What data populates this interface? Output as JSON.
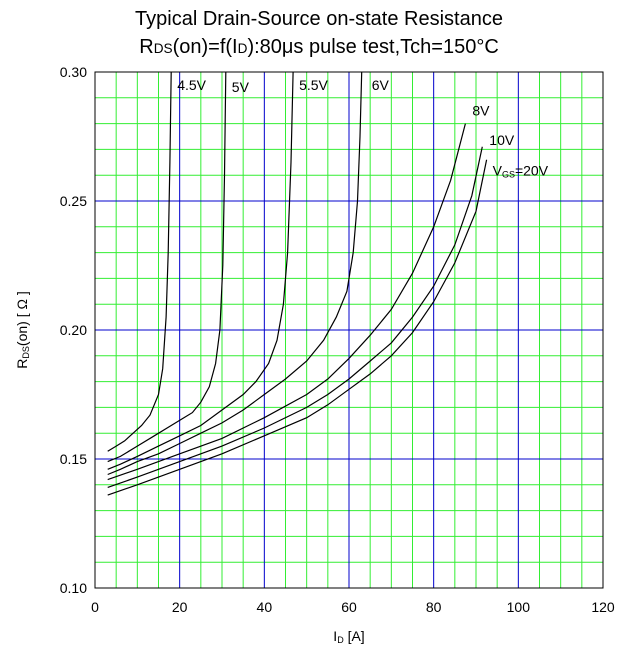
{
  "chart_data": {
    "type": "line",
    "title": "Typical Drain-Source on-state Resistance",
    "subtitle": {
      "pre": "R",
      "sub1": "DS",
      "mid": "(on)=f(I",
      "sub2": "D",
      "post": "):80μs pulse test,Tch=150°C"
    },
    "xlabel": {
      "main": "I",
      "sub": "D",
      "rest": " [A]"
    },
    "ylabel": {
      "main": "R",
      "sub": "DS",
      "rest": "(on) [ Ω ]"
    },
    "xlim": [
      0,
      120
    ],
    "ylim": [
      0.1,
      0.3
    ],
    "xticks": [
      "0",
      "20",
      "40",
      "60",
      "80",
      "100",
      "120"
    ],
    "yticks": [
      "0.10",
      "0.15",
      "0.20",
      "0.25",
      "0.30"
    ],
    "grid": true,
    "colors": {
      "major_grid": "#0000cc",
      "minor_grid": "#33ee33",
      "line": "#000000"
    },
    "series": [
      {
        "name": "4.5V",
        "label": {
          "pre": "4.5V",
          "sub": "",
          "post": ""
        },
        "x": [
          3,
          5,
          7,
          9,
          11,
          13,
          15,
          16,
          16.8,
          17.3,
          17.7,
          18.0
        ],
        "y": [
          0.153,
          0.155,
          0.157,
          0.16,
          0.163,
          0.167,
          0.175,
          0.185,
          0.205,
          0.23,
          0.265,
          0.3
        ]
      },
      {
        "name": "5V",
        "label": {
          "pre": "5V",
          "sub": "",
          "post": ""
        },
        "x": [
          3,
          6,
          10,
          14,
          18,
          21,
          23,
          25,
          27,
          28.5,
          29.5,
          30.2,
          30.6,
          30.9
        ],
        "y": [
          0.149,
          0.151,
          0.155,
          0.159,
          0.163,
          0.166,
          0.168,
          0.172,
          0.178,
          0.187,
          0.2,
          0.225,
          0.26,
          0.3
        ]
      },
      {
        "name": "5.5V",
        "label": {
          "pre": "5.5V",
          "sub": "",
          "post": ""
        },
        "x": [
          3,
          6,
          10,
          15,
          20,
          25,
          30,
          35,
          38,
          41,
          43,
          44.5,
          45.5,
          46.3,
          46.8
        ],
        "y": [
          0.146,
          0.148,
          0.151,
          0.155,
          0.159,
          0.163,
          0.169,
          0.175,
          0.18,
          0.187,
          0.196,
          0.21,
          0.23,
          0.265,
          0.3
        ]
      },
      {
        "name": "6V",
        "label": {
          "pre": "6V",
          "sub": "",
          "post": ""
        },
        "x": [
          3,
          6,
          10,
          15,
          20,
          25,
          30,
          35,
          40,
          45,
          50,
          54,
          57,
          59.5,
          61,
          62,
          62.6,
          63
        ],
        "y": [
          0.144,
          0.146,
          0.149,
          0.152,
          0.156,
          0.16,
          0.164,
          0.169,
          0.175,
          0.181,
          0.188,
          0.196,
          0.205,
          0.215,
          0.23,
          0.25,
          0.275,
          0.3
        ]
      },
      {
        "name": "8V",
        "label": {
          "pre": "8V",
          "sub": "",
          "post": ""
        },
        "x": [
          3,
          10,
          20,
          30,
          40,
          50,
          55,
          60,
          65,
          70,
          75,
          80,
          84,
          87.5
        ],
        "y": [
          0.142,
          0.146,
          0.152,
          0.158,
          0.166,
          0.175,
          0.181,
          0.189,
          0.198,
          0.208,
          0.222,
          0.24,
          0.258,
          0.28
        ]
      },
      {
        "name": "10V",
        "label": {
          "pre": "10V",
          "sub": "",
          "post": ""
        },
        "x": [
          3,
          10,
          20,
          30,
          40,
          50,
          55,
          60,
          65,
          70,
          75,
          80,
          85,
          89,
          91.5
        ],
        "y": [
          0.139,
          0.143,
          0.149,
          0.155,
          0.162,
          0.17,
          0.175,
          0.181,
          0.188,
          0.195,
          0.205,
          0.217,
          0.233,
          0.252,
          0.271
        ]
      },
      {
        "name": "VGS=20V",
        "label": {
          "pre": "V",
          "sub": "GS",
          "post": "=20V"
        },
        "x": [
          3,
          10,
          20,
          30,
          40,
          50,
          55,
          60,
          65,
          70,
          75,
          80,
          85,
          90,
          92.5
        ],
        "y": [
          0.136,
          0.14,
          0.146,
          0.152,
          0.159,
          0.166,
          0.171,
          0.177,
          0.183,
          0.19,
          0.199,
          0.211,
          0.226,
          0.246,
          0.266
        ]
      }
    ]
  }
}
